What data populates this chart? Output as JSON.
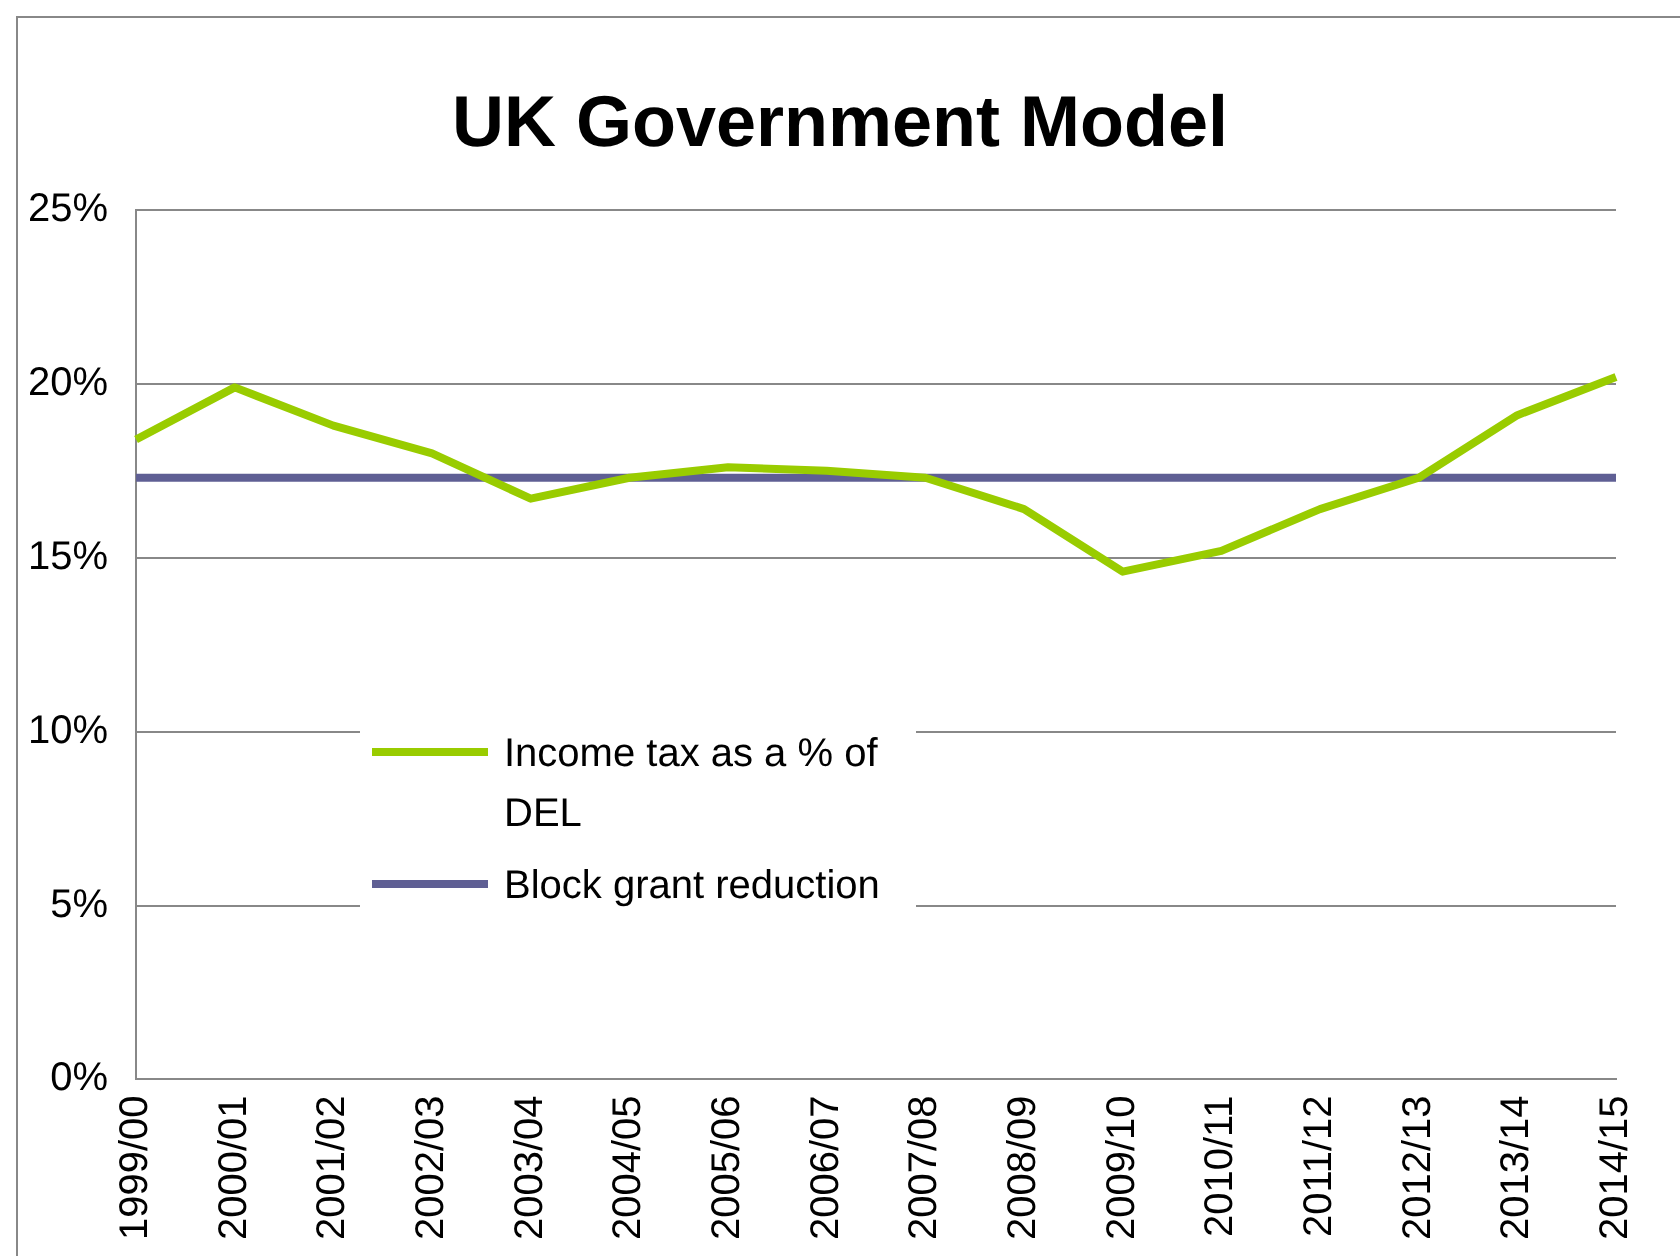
{
  "chart_data": {
    "type": "line",
    "title": "UK Government Model",
    "categories": [
      "1999/00",
      "2000/01",
      "2001/02",
      "2002/03",
      "2003/04",
      "2004/05",
      "2005/06",
      "2006/07",
      "2007/08",
      "2008/09",
      "2009/10",
      "2010/11",
      "2011/12",
      "2012/13",
      "2013/14",
      "2014/15"
    ],
    "series": [
      {
        "name": "Income tax as a % of DEL",
        "color": "#99cc00",
        "values": [
          18.4,
          19.9,
          18.8,
          18.0,
          16.7,
          17.3,
          17.6,
          17.5,
          17.3,
          16.4,
          14.6,
          15.2,
          16.4,
          17.3,
          19.1,
          20.2
        ]
      },
      {
        "name": "Block grant reduction",
        "color": "#5f5f94",
        "values": [
          17.3,
          17.3,
          17.3,
          17.3,
          17.3,
          17.3,
          17.3,
          17.3,
          17.3,
          17.3,
          17.3,
          17.3,
          17.3,
          17.3,
          17.3,
          17.3
        ]
      }
    ],
    "ylim": [
      0,
      25
    ],
    "yticks": [
      {
        "value": 0,
        "label": "0%"
      },
      {
        "value": 5,
        "label": "5%"
      },
      {
        "value": 10,
        "label": "10%"
      },
      {
        "value": 15,
        "label": "15%"
      },
      {
        "value": 20,
        "label": "20%"
      },
      {
        "value": 25,
        "label": "25%"
      }
    ],
    "grid": "y",
    "legend": "bottom left",
    "marker": "none",
    "line_style": "solid"
  }
}
